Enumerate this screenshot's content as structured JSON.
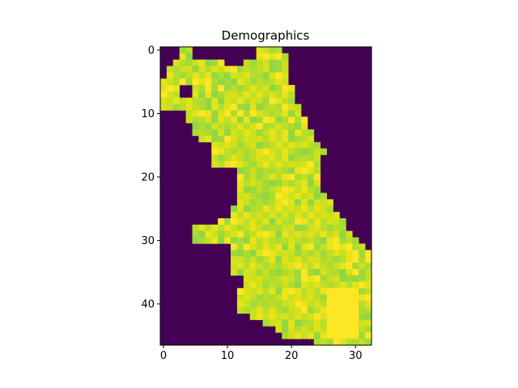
{
  "chart_data": {
    "type": "heatmap",
    "title": "Demographics",
    "xlabel": "",
    "ylabel": "",
    "colormap": "viridis",
    "background_value_color": "#440154",
    "high_value_color": "#fde725",
    "n_cols": 33,
    "n_rows": 47,
    "xlim": [
      -0.5,
      32.5
    ],
    "ylim": [
      46.5,
      -0.5
    ],
    "x_ticks": [
      0,
      10,
      20,
      30
    ],
    "y_ticks": [
      0,
      10,
      20,
      30,
      40
    ],
    "x_tick_labels": [
      "0",
      "10",
      "20",
      "30"
    ],
    "y_tick_labels": [
      "0",
      "10",
      "20",
      "30",
      "40"
    ],
    "grid": false,
    "legend": "none",
    "row_extents_note": "per-row [first_col, last_col] of non-background cells",
    "row_extents": [
      [
        [
          3,
          4
        ],
        [
          15,
          18
        ]
      ],
      [
        [
          3,
          4
        ],
        [
          15,
          19
        ]
      ],
      [
        [
          2,
          9
        ],
        [
          13,
          19
        ]
      ],
      [
        [
          1,
          12
        ],
        [
          13,
          19
        ]
      ],
      [
        [
          1,
          19
        ]
      ],
      [
        [
          0,
          19
        ]
      ],
      [
        [
          0,
          2
        ],
        [
          5,
          20
        ]
      ],
      [
        [
          0,
          2
        ],
        [
          5,
          20
        ]
      ],
      [
        [
          0,
          20
        ]
      ],
      [
        [
          0,
          21
        ]
      ],
      [
        [
          4,
          21
        ]
      ],
      [
        [
          4,
          22
        ]
      ],
      [
        [
          5,
          22
        ]
      ],
      [
        [
          5,
          23
        ]
      ],
      [
        [
          6,
          23
        ]
      ],
      [
        [
          8,
          24
        ]
      ],
      [
        [
          8,
          25
        ]
      ],
      [
        [
          8,
          24
        ]
      ],
      [
        [
          8,
          24
        ]
      ],
      [
        [
          12,
          24
        ]
      ],
      [
        [
          12,
          24
        ]
      ],
      [
        [
          12,
          24
        ]
      ],
      [
        [
          12,
          24
        ]
      ],
      [
        [
          12,
          25
        ]
      ],
      [
        [
          12,
          26
        ]
      ],
      [
        [
          11,
          26
        ]
      ],
      [
        [
          11,
          27
        ]
      ],
      [
        [
          9,
          28
        ]
      ],
      [
        [
          5,
          28
        ]
      ],
      [
        [
          5,
          29
        ]
      ],
      [
        [
          5,
          30
        ]
      ],
      [
        [
          11,
          31
        ]
      ],
      [
        [
          11,
          32
        ]
      ],
      [
        [
          11,
          32
        ]
      ],
      [
        [
          11,
          32
        ]
      ],
      [
        [
          11,
          32
        ]
      ],
      [
        [
          13,
          32
        ]
      ],
      [
        [
          13,
          32
        ]
      ],
      [
        [
          12,
          32
        ]
      ],
      [
        [
          12,
          32
        ]
      ],
      [
        [
          12,
          32
        ]
      ],
      [
        [
          12,
          32
        ]
      ],
      [
        [
          14,
          32
        ]
      ],
      [
        [
          16,
          32
        ]
      ],
      [
        [
          18,
          32
        ]
      ],
      [
        [
          19,
          32
        ]
      ],
      [
        [
          24,
          32
        ]
      ]
    ],
    "bright_region": {
      "rows": [
        38,
        45
      ],
      "cols": [
        26,
        30
      ],
      "value": "max"
    },
    "value_range": [
      0,
      1
    ]
  }
}
